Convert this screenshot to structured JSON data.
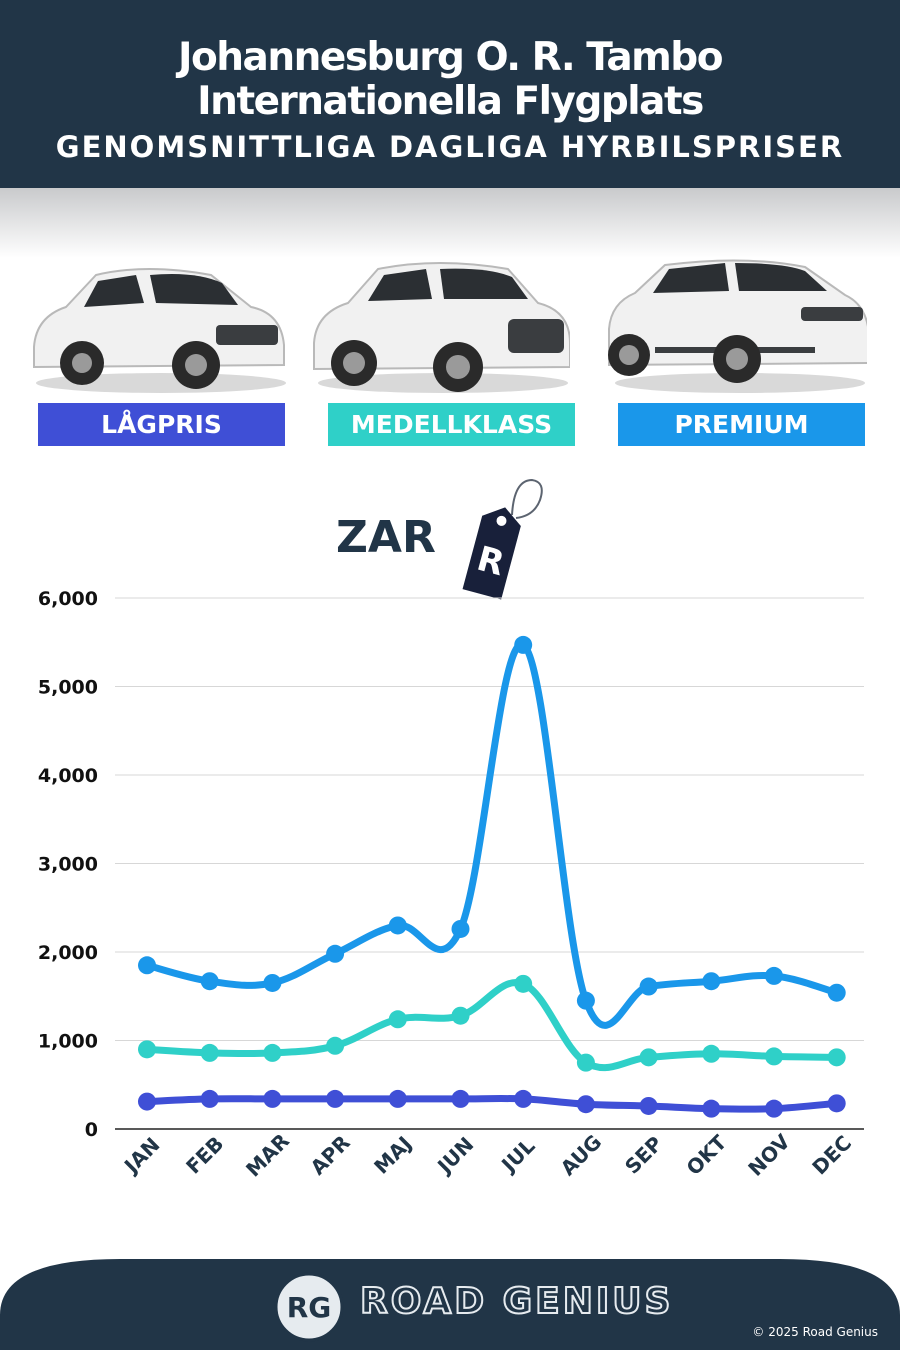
{
  "header": {
    "title_line1": "Johannesburg O. R. Tambo",
    "title_line2": "Internationella Flygplats",
    "subtitle": "GENOMSNITTLIGA DAGLIGA HYRBILSPRISER"
  },
  "categories_badges": [
    {
      "label": "LÅGPRIS",
      "color": "#3f4fd6"
    },
    {
      "label": "MEDELLKLASS",
      "color": "#2fd0c8"
    },
    {
      "label": "PREMIUM",
      "color": "#1a97ea"
    }
  ],
  "currency": {
    "code": "ZAR",
    "symbol": "R"
  },
  "chart_data": {
    "type": "line",
    "categories": [
      "JAN",
      "FEB",
      "MAR",
      "APR",
      "MAJ",
      "JUN",
      "JUL",
      "AUG",
      "SEP",
      "OKT",
      "NOV",
      "DEC"
    ],
    "series": [
      {
        "name": "PREMIUM",
        "color": "#1a97ea",
        "values": [
          1850,
          1670,
          1650,
          1980,
          2300,
          2260,
          5470,
          1450,
          1610,
          1670,
          1730,
          1540
        ]
      },
      {
        "name": "MEDELLKLASS",
        "color": "#2fd0c8",
        "values": [
          900,
          860,
          860,
          940,
          1240,
          1280,
          1640,
          750,
          810,
          850,
          820,
          810
        ]
      },
      {
        "name": "LÅGPRIS",
        "color": "#3f4fd6",
        "values": [
          310,
          340,
          340,
          340,
          340,
          340,
          340,
          280,
          260,
          230,
          230,
          290
        ]
      }
    ],
    "yticks": [
      "0",
      "1,000",
      "2,000",
      "3,000",
      "4,000",
      "5,000",
      "6,000"
    ],
    "ylim": [
      0,
      6000
    ],
    "grid": true
  },
  "footer": {
    "logo_text": "RG",
    "brand": "ROAD GENIUS",
    "copyright": "© 2025 Road Genius",
    "color": "#213547"
  }
}
